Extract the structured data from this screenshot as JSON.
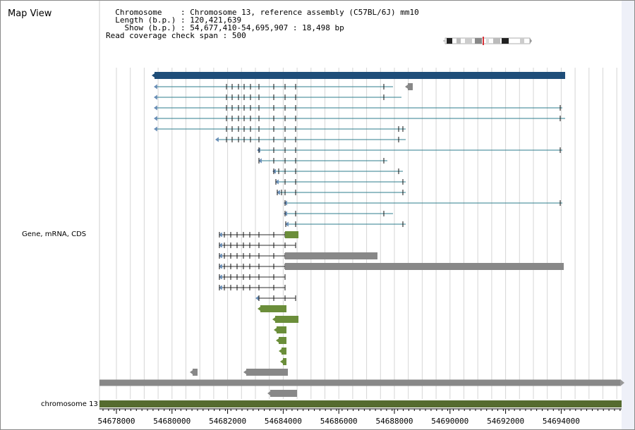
{
  "header": {
    "title": "Map View",
    "chromosome_key": "Chromosome",
    "chromosome_value": "Chromosome 13, reference assembly (C57BL/6J) mm10",
    "length_key": "Length (b.p.)",
    "length_value": "120,421,639",
    "show_key": "Show (b.p.)",
    "show_value": "54,677,410-54,695,907 : 18,498 bp",
    "coverage_key": "Read coverage check span",
    "coverage_value": "500"
  },
  "tracks": {
    "gene_label": "Gene, mRNA, CDS",
    "chromosome_label": "chromosome 13"
  },
  "axis": {
    "tick_labels": [
      "54678000",
      "54680000",
      "54682000",
      "54684000",
      "54686000",
      "54688000",
      "54690000",
      "54692000",
      "54694000"
    ]
  },
  "colors": {
    "gene": "#1f4e79",
    "mrna": "#2e7d8c",
    "cds": "#6b8e3a",
    "gray_feature": "#888888",
    "chromosome_bar": "#556b2f",
    "ideogram_marker": "#d9343a"
  }
}
